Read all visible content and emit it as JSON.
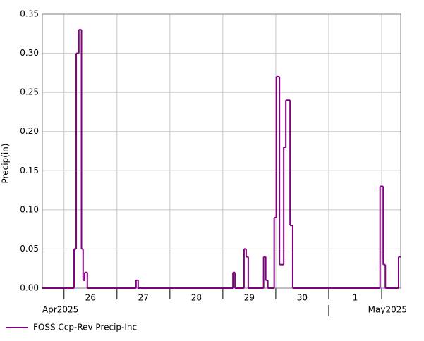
{
  "chart_data": {
    "type": "step",
    "y_label": "Precip(in)",
    "series": [
      {
        "name": "FOSS Ccp-Rev Precip-Inc",
        "color": "#800080",
        "x": [
          25.59,
          26.19,
          26.23,
          26.28,
          26.33,
          26.36,
          26.39,
          26.44,
          27.36,
          27.4,
          29.19,
          29.23,
          29.4,
          29.44,
          29.48,
          29.77,
          29.81,
          29.85,
          29.97,
          30.01,
          30.07,
          30.15,
          30.19,
          30.27,
          30.32,
          31.97,
          32.03,
          32.07,
          32.32
        ],
        "values": [
          0,
          0.05,
          0.3,
          0.33,
          0.05,
          0.01,
          0.02,
          0,
          0.01,
          0,
          0.02,
          0,
          0.05,
          0.04,
          0,
          0.04,
          0.01,
          0,
          0.09,
          0.27,
          0.03,
          0.18,
          0.24,
          0.08,
          0,
          0.13,
          0.03,
          0,
          0.04
        ]
      }
    ],
    "xlim": [
      25.59,
      32.36
    ],
    "xticks": [
      26,
      27,
      28,
      29,
      30,
      31,
      32
    ],
    "day_labels": [
      "26",
      "27",
      "28",
      "29",
      "30",
      "1"
    ],
    "month_labels": [
      "Apr2025",
      "May2025"
    ],
    "ylim": [
      0,
      0.35
    ],
    "yticks": [
      {
        "value": 0,
        "label": "0.00"
      },
      {
        "value": 0.05,
        "label": "0.05"
      },
      {
        "value": 0.1,
        "label": "0.10"
      },
      {
        "value": 0.15,
        "label": "0.15"
      },
      {
        "value": 0.2,
        "label": "0.20"
      },
      {
        "value": 0.25,
        "label": "0.25"
      },
      {
        "value": 0.3,
        "label": "0.30"
      },
      {
        "value": 0.35,
        "label": "0.35"
      }
    ],
    "grid": true
  }
}
